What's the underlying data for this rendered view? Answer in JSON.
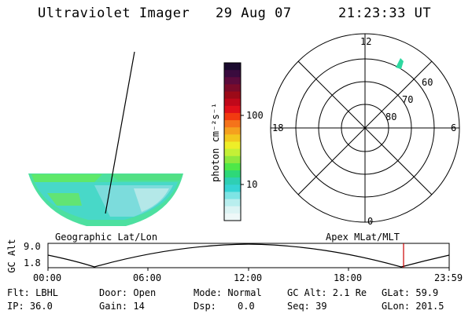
{
  "header": {
    "title": "Ultraviolet Imager",
    "date": "29 Aug 07",
    "time": "21:23:33 UT"
  },
  "geo_panel": {
    "label": "Geographic Lat/Lon"
  },
  "colorbar": {
    "unit_label": "photon cm⁻²s⁻¹",
    "scale": "log",
    "ticks": [
      "100",
      "10"
    ],
    "colors": [
      "#1a0a2e",
      "#3a0b3e",
      "#5c0b3c",
      "#7a0b2a",
      "#9c0a18",
      "#c0081a",
      "#e0101a",
      "#f23a10",
      "#f5731a",
      "#f5a01e",
      "#f2c81e",
      "#eeee28",
      "#c4f036",
      "#8ee83e",
      "#4ee848",
      "#2ed878",
      "#2ecfb4",
      "#36d4d4",
      "#7ee4e4",
      "#b8eeee",
      "#dcf4f4",
      "#eef8f8"
    ]
  },
  "polar_panel": {
    "label": "Apex MLat/MLT",
    "mlt_labels": {
      "top": "12",
      "left": "18",
      "right": "6",
      "bottom": "0"
    },
    "lat_labels": [
      "60",
      "70",
      "80"
    ]
  },
  "altitude_plot": {
    "ylabel": "GC Alt",
    "yticks": [
      "9.0",
      "1.8"
    ],
    "xticks": [
      "00:00",
      "06:00",
      "12:00",
      "18:00",
      "23:59"
    ],
    "marker_color": "#cc0000"
  },
  "info": {
    "flt": "Flt: LBHL",
    "ip": "IP: 36.0",
    "door": "Door: Open",
    "gain": "Gain: 14",
    "mode": "Mode: Normal",
    "dsp_label": "Dsp:",
    "dsp_value": "0.0",
    "gc_alt": "GC Alt: 2.1 Re",
    "seq": "Seq: 39",
    "glat": "GLat: 59.9",
    "glon": "GLon: 201.5"
  }
}
